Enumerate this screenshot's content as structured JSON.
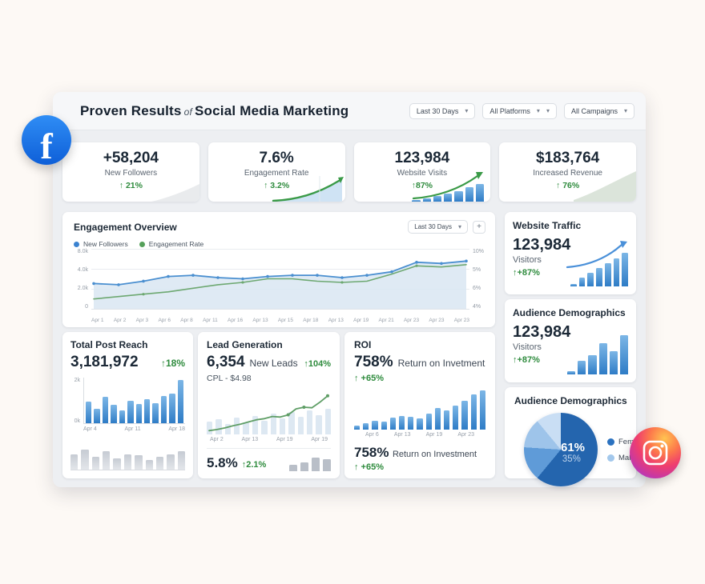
{
  "header": {
    "title_1": "Proven Results",
    "title_of": "of",
    "title_2": "Social Media Marketing",
    "filters": [
      {
        "label": "Last 30 Days"
      },
      {
        "label": "All Platforms"
      },
      {
        "label": "All Campaigns"
      }
    ]
  },
  "colors": {
    "green": "#2e8b3d",
    "blue": "#4a8fd0",
    "chart_green": "#6da871"
  },
  "kpis": [
    {
      "value": "+58,204",
      "label": "New Followers",
      "delta": "↑ 21%"
    },
    {
      "value": "7.6%",
      "label": "Engagement Rate",
      "delta": "↑ 3.2%"
    },
    {
      "value": "123,984",
      "label": "Website Visits",
      "delta": "↑87%",
      "bars": [
        8,
        14,
        22,
        32,
        45,
        60,
        72
      ]
    },
    {
      "value": "$183,764",
      "label": "Increased Revenue",
      "delta": "↑ 76%"
    }
  ],
  "engagement": {
    "title": "Engagement Overview",
    "filter": "Last 30 Days",
    "more_button": "+",
    "legend": [
      {
        "label": "New Followers",
        "color": "#3b82d0"
      },
      {
        "label": "Engagement Rate",
        "color": "#55a05a"
      }
    ],
    "y_left": [
      "8.0k",
      "4.0k",
      "2.0k",
      "0"
    ],
    "y_right": [
      "10%",
      "5%",
      "6%",
      "4%"
    ],
    "x_labels": [
      "Apr 1",
      "Apr 2",
      "Apr 3",
      "Apr 6",
      "Apr 8",
      "Apr 11",
      "Apr 16",
      "Apr 13",
      "Apr 15",
      "Apr 18",
      "Apr 13",
      "Apr 19",
      "Apr 21",
      "Apr 23",
      "Apr 23",
      "Apr 23"
    ],
    "series_blue": {
      "name": "New Followers",
      "values": [
        2.0,
        1.9,
        2.2,
        2.6,
        2.7,
        2.5,
        2.4,
        2.6,
        2.7,
        2.7,
        2.5,
        2.7,
        3.0,
        3.8,
        3.7,
        3.9
      ]
    },
    "series_green": {
      "name": "Engagement Rate",
      "values": [
        0.7,
        0.9,
        1.1,
        1.3,
        1.6,
        1.9,
        2.1,
        2.4,
        2.4,
        2.2,
        2.1,
        2.2,
        2.8,
        3.5,
        3.4,
        3.6
      ]
    },
    "y_max": 4.6
  },
  "website_traffic": {
    "title": "Website Traffic",
    "value": "123,984",
    "label": "Visitors",
    "delta": "↑+87%",
    "bars": [
      6,
      25,
      38,
      50,
      62,
      76,
      92
    ]
  },
  "audience_bars": {
    "title": "Audience Demographics",
    "value": "123,984",
    "label": "Visitors",
    "delta": "↑+87%",
    "bars": [
      8,
      30,
      42,
      70,
      52,
      88
    ]
  },
  "audience_pie": {
    "title": "Audience Demographics",
    "center_main": "61%",
    "center_sub": "35%",
    "slices": [
      {
        "pct": 61,
        "color": "#2465ae"
      },
      {
        "pct": 15,
        "color": "#5f9bd8"
      },
      {
        "pct": 13,
        "color": "#9ec4ea"
      },
      {
        "pct": 11,
        "color": "#c9def4"
      }
    ],
    "legend": [
      {
        "label": "Female",
        "color": "#2b72c0"
      },
      {
        "label": "Male",
        "color": "#a3c8ec"
      }
    ]
  },
  "total_post_reach": {
    "title": "Total Post Reach",
    "value": "3,181,972",
    "delta": "↑18%",
    "y_labels": [
      "2k",
      "0k"
    ],
    "x_labels": [
      "Apr 4",
      "Apr 11",
      "Apr 18"
    ],
    "bars": [
      48,
      32,
      58,
      40,
      28,
      50,
      42,
      52,
      44,
      60,
      65,
      95
    ],
    "ghost_bars": [
      50,
      65,
      40,
      60,
      35,
      50,
      45,
      30,
      42,
      50,
      58
    ]
  },
  "lead_generation": {
    "title": "Lead Generation",
    "value": "6,354",
    "unit": "New Leads",
    "delta": "↑104%",
    "sub": "CPL - $4.98",
    "x_labels": [
      "Apr 2",
      "Apr 13",
      "Apr 19",
      "Apr 19"
    ],
    "line": [
      4,
      6,
      9,
      13,
      16,
      20,
      24,
      26,
      30,
      29,
      33,
      44,
      47,
      46,
      56,
      68
    ],
    "line_max": 75,
    "bars": [
      28,
      32,
      22,
      36,
      26,
      40,
      30,
      44,
      34,
      48,
      38,
      52,
      42,
      56
    ],
    "secondary_value": "5.8%",
    "secondary_delta": "↑2.1%",
    "secondary_bars": [
      35,
      50,
      78,
      68
    ]
  },
  "roi": {
    "title": "ROI",
    "value": "758%",
    "unit": "Return on Invetment",
    "delta": "↑ +65%",
    "x_labels": [
      "Apr 6",
      "Apr 13",
      "Apr 19",
      "Apr 23"
    ],
    "bars": [
      10,
      16,
      22,
      19,
      28,
      32,
      30,
      27,
      38,
      52,
      47,
      58,
      70,
      84,
      95
    ],
    "secondary_value": "758%",
    "secondary_unit": "Return on Investment",
    "secondary_delta": "↑ +65%"
  }
}
